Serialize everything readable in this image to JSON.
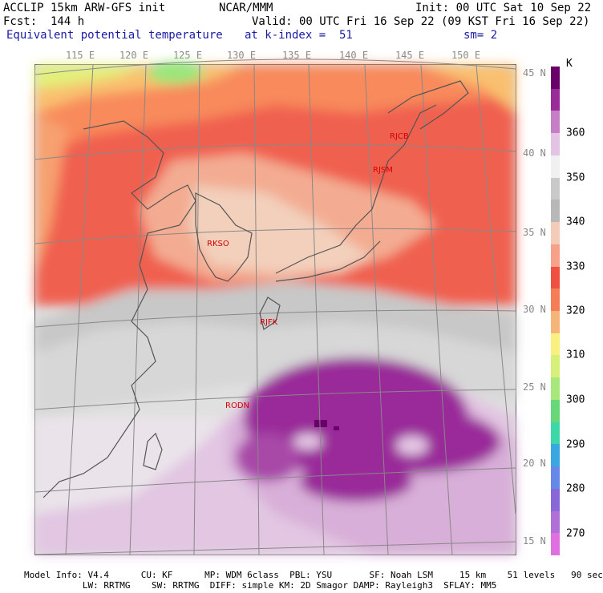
{
  "header": {
    "line1_left": "ACCLIP 15km ARW-GFS init",
    "line1_mid": "NCAR/MMM",
    "line1_right": "Init: 00 UTC Sat 10 Sep 22",
    "line2_left": "Fcst:  144 h",
    "line2_right": "Valid: 00 UTC Fri 16 Sep 22 (09 KST Fri 16 Sep 22)",
    "line3_left": "Equivalent potential temperature",
    "line3_mid": "at k-index =  51",
    "line3_right": "sm= 2"
  },
  "map": {
    "lon_labels": [
      "115 E",
      "120 E",
      "125 E",
      "130 E",
      "135 E",
      "140 E",
      "145 E",
      "150 E"
    ],
    "lat_labels": [
      "45 N",
      "40 N",
      "35 N",
      "30 N",
      "25 N",
      "20 N",
      "15 N"
    ],
    "stations": [
      {
        "id": "RJCB",
        "label": "RJCB"
      },
      {
        "id": "RJSM",
        "label": "RJSM"
      },
      {
        "id": "RKSO",
        "label": "RKSO"
      },
      {
        "id": "RJFK",
        "label": "RJFK"
      },
      {
        "id": "RODN",
        "label": "RODN"
      }
    ]
  },
  "colorbar": {
    "unit": "K",
    "labels": [
      "360",
      "350",
      "340",
      "330",
      "320",
      "310",
      "300",
      "290",
      "280",
      "270"
    ],
    "colors": [
      "#6a006a",
      "#9a2c9a",
      "#c67fc6",
      "#e4c4e4",
      "#f0f0f0",
      "#c9c9c9",
      "#b8b8b8",
      "#f2ccb8",
      "#f7a08a",
      "#f05040",
      "#f57e58",
      "#f6b478",
      "#faf080",
      "#d6f07a",
      "#a8e87a",
      "#66d87a",
      "#3cd8a8",
      "#3aa8e0",
      "#6688e8",
      "#8868d8",
      "#b070d8",
      "#e070e0"
    ]
  },
  "footer": {
    "line1": "Model Info: V4.4      CU: KF      MP: WDM 6class  PBL: YSU       SF: Noah LSM     15 km    51 levels   90 sec",
    "line2": "           LW: RRTMG    SW: RRTMG  DIFF: simple KM: 2D Smagor DAMP: Rayleigh3  SFLAY: MM5"
  }
}
